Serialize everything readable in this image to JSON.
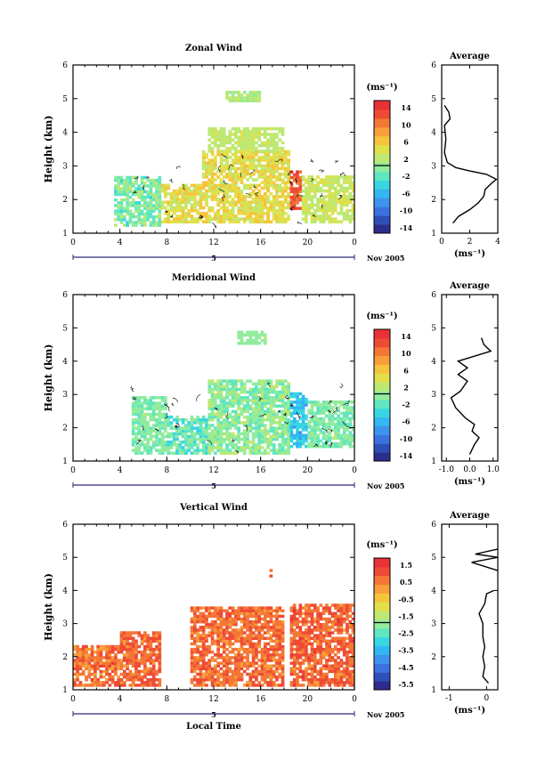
{
  "chart_data": [
    {
      "type": "heatmap",
      "title": "Zonal Wind",
      "ylabel": "Height (km)",
      "xlabel": "",
      "x_ticks": [
        "0",
        "4",
        "8",
        "12",
        "16",
        "20",
        "0"
      ],
      "y_ticks": [
        "1",
        "2",
        "3",
        "4",
        "5",
        "6"
      ],
      "xlim": [
        0,
        24
      ],
      "ylim": [
        1,
        6
      ],
      "date_label": "5",
      "month_label": "Nov 2005",
      "colorbar": {
        "unit": "(ms⁻¹)",
        "labels": [
          "14",
          "10",
          "6",
          "2",
          "-2",
          "-6",
          "-10",
          "-14"
        ],
        "range": [
          -14,
          14
        ]
      },
      "average": {
        "title": "Average",
        "xlabel": "(ms⁻¹)",
        "x_ticks": [
          "0",
          "2",
          "4"
        ],
        "xlim": [
          0,
          4
        ],
        "ylim": [
          1,
          6
        ],
        "profile": [
          {
            "x": 0.8,
            "y": 1.3
          },
          {
            "x": 1.2,
            "y": 1.5
          },
          {
            "x": 2.0,
            "y": 1.7
          },
          {
            "x": 2.6,
            "y": 1.9
          },
          {
            "x": 3.0,
            "y": 2.1
          },
          {
            "x": 3.1,
            "y": 2.3
          },
          {
            "x": 3.6,
            "y": 2.5
          },
          {
            "x": 3.9,
            "y": 2.6
          },
          {
            "x": 3.2,
            "y": 2.75
          },
          {
            "x": 2.0,
            "y": 2.85
          },
          {
            "x": 1.0,
            "y": 2.95
          },
          {
            "x": 0.4,
            "y": 3.1
          },
          {
            "x": 0.2,
            "y": 3.4
          },
          {
            "x": 0.3,
            "y": 3.8
          },
          {
            "x": 0.2,
            "y": 4.2
          },
          {
            "x": 0.6,
            "y": 4.4
          },
          {
            "x": 0.5,
            "y": 4.6
          },
          {
            "x": 0.2,
            "y": 4.8
          }
        ]
      }
    },
    {
      "type": "heatmap",
      "title": "Meridional Wind",
      "ylabel": "Height (km)",
      "xlabel": "",
      "x_ticks": [
        "0",
        "4",
        "8",
        "12",
        "16",
        "20",
        "0"
      ],
      "y_ticks": [
        "1",
        "2",
        "3",
        "4",
        "5",
        "6"
      ],
      "xlim": [
        0,
        24
      ],
      "ylim": [
        1,
        6
      ],
      "date_label": "5",
      "month_label": "Nov 2005",
      "colorbar": {
        "unit": "(ms⁻¹)",
        "labels": [
          "14",
          "10",
          "6",
          "2",
          "-2",
          "-6",
          "-10",
          "-14"
        ],
        "range": [
          -14,
          14
        ]
      },
      "average": {
        "title": "Average",
        "xlabel": "(ms⁻¹)",
        "x_ticks": [
          "-1.0",
          "0.0",
          "1.0"
        ],
        "xlim": [
          -1.2,
          1.2
        ],
        "ylim": [
          1,
          6
        ],
        "profile": [
          {
            "x": 0.0,
            "y": 1.2
          },
          {
            "x": 0.2,
            "y": 1.5
          },
          {
            "x": 0.4,
            "y": 1.7
          },
          {
            "x": 0.1,
            "y": 1.9
          },
          {
            "x": 0.2,
            "y": 2.1
          },
          {
            "x": -0.2,
            "y": 2.3
          },
          {
            "x": -0.6,
            "y": 2.6
          },
          {
            "x": -0.8,
            "y": 2.9
          },
          {
            "x": -0.4,
            "y": 3.1
          },
          {
            "x": -0.1,
            "y": 3.4
          },
          {
            "x": -0.5,
            "y": 3.6
          },
          {
            "x": -0.1,
            "y": 3.8
          },
          {
            "x": -0.5,
            "y": 4.0
          },
          {
            "x": 0.9,
            "y": 4.3
          },
          {
            "x": 0.6,
            "y": 4.5
          },
          {
            "x": 0.5,
            "y": 4.7
          }
        ]
      }
    },
    {
      "type": "heatmap",
      "title": "Vertical Wind",
      "ylabel": "Height (km)",
      "xlabel": "Local Time",
      "x_ticks": [
        "0",
        "4",
        "8",
        "12",
        "16",
        "20",
        "0"
      ],
      "y_ticks": [
        "1",
        "2",
        "3",
        "4",
        "5",
        "6"
      ],
      "xlim": [
        0,
        24
      ],
      "ylim": [
        1,
        6
      ],
      "date_label": "5",
      "month_label": "Nov 2005",
      "colorbar": {
        "unit": "(ms⁻¹)",
        "labels": [
          "1.5",
          "0.5",
          "-0.5",
          "-1.5",
          "-2.5",
          "-3.5",
          "-4.5",
          "-5.5"
        ],
        "range": [
          -6,
          2
        ]
      },
      "average": {
        "title": "Average",
        "xlabel": "(ms⁻¹)",
        "x_ticks": [
          "-1",
          "0"
        ],
        "xlim": [
          -1.2,
          0.3
        ],
        "ylim": [
          1,
          6
        ],
        "profile": [
          {
            "x": 0.05,
            "y": 1.2
          },
          {
            "x": -0.1,
            "y": 1.4
          },
          {
            "x": -0.05,
            "y": 1.7
          },
          {
            "x": -0.1,
            "y": 2.0
          },
          {
            "x": -0.05,
            "y": 2.3
          },
          {
            "x": -0.1,
            "y": 2.6
          },
          {
            "x": -0.1,
            "y": 3.0
          },
          {
            "x": -0.2,
            "y": 3.3
          },
          {
            "x": -0.05,
            "y": 3.6
          },
          {
            "x": 0.0,
            "y": 3.9
          },
          {
            "x": 0.2,
            "y": 4.0
          }
        ],
        "profile_upper": [
          {
            "x": 0.3,
            "y": 4.6
          },
          {
            "x": -0.4,
            "y": 4.85
          },
          {
            "x": 0.3,
            "y": 5.0
          },
          {
            "x": -0.3,
            "y": 5.1
          },
          {
            "x": 0.3,
            "y": 5.25
          }
        ]
      }
    }
  ]
}
